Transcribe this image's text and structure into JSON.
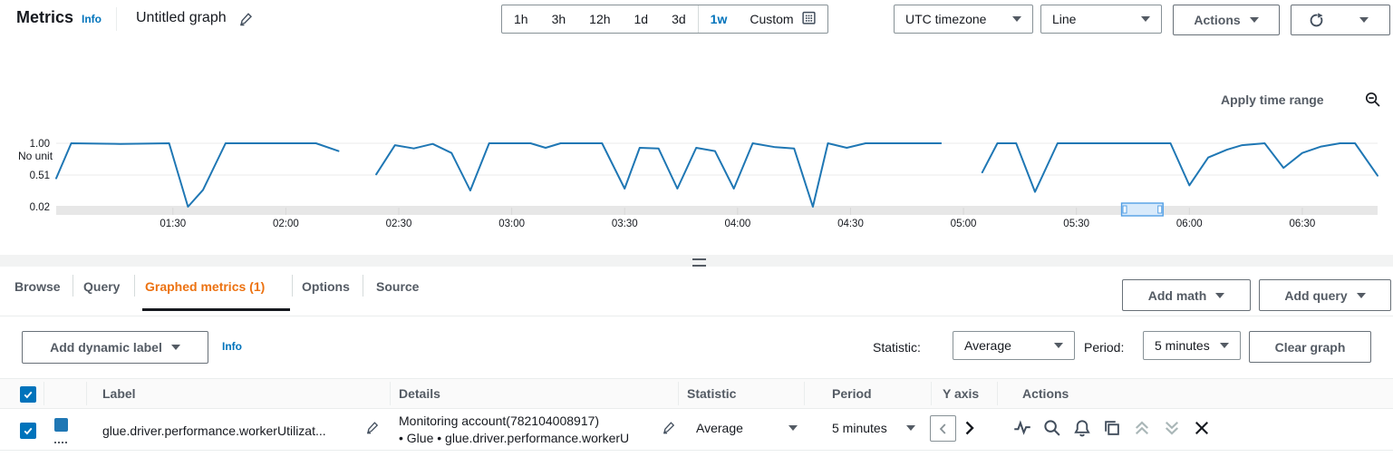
{
  "colors": {
    "accent_blue": "#0073bb",
    "active_tab_orange": "#ec7211",
    "line_blue": "#1f77b4",
    "text_dark": "#16191f",
    "text_secondary": "#545b64"
  },
  "header": {
    "app_title": "Metrics",
    "info_label": "Info",
    "graph_title": "Untitled graph",
    "time_ranges": [
      "1h",
      "3h",
      "12h",
      "1d",
      "3d",
      "1w"
    ],
    "selected_time_range": "1w",
    "custom_label": "Custom",
    "timezone_value": "UTC timezone",
    "chart_type_value": "Line",
    "actions_label": "Actions"
  },
  "chart": {
    "apply_time_range_label": "Apply time range",
    "unit_label": "No unit"
  },
  "chart_data": {
    "type": "line",
    "title": "",
    "ylabel": "No unit",
    "ylim": [
      0.02,
      1.0
    ],
    "yticks": [
      {
        "v": 1.0,
        "label": "1.00"
      },
      {
        "v": 0.51,
        "label": "0.51"
      },
      {
        "v": 0.02,
        "label": "0.02"
      }
    ],
    "x_domain_minutes": [
      59,
      410
    ],
    "xticks": [
      {
        "m": 90,
        "label": "01:30"
      },
      {
        "m": 120,
        "label": "02:00"
      },
      {
        "m": 150,
        "label": "02:30"
      },
      {
        "m": 180,
        "label": "03:00"
      },
      {
        "m": 210,
        "label": "03:30"
      },
      {
        "m": 240,
        "label": "04:00"
      },
      {
        "m": 270,
        "label": "04:30"
      },
      {
        "m": 300,
        "label": "05:00"
      },
      {
        "m": 330,
        "label": "05:30"
      },
      {
        "m": 360,
        "label": "06:00"
      },
      {
        "m": 390,
        "label": "06:30"
      }
    ],
    "zoom_selection_minutes": [
      342,
      353
    ],
    "legend": "none",
    "grid": "horizontal",
    "series": [
      {
        "name": "glue.driver.performance.workerUtilization",
        "color": "#1f77b4",
        "segments": [
          [
            [
              59,
              0.46
            ],
            [
              63,
              1.0
            ],
            [
              76,
              0.99
            ],
            [
              89,
              1.0
            ],
            [
              94,
              0.02
            ],
            [
              98,
              0.28
            ],
            [
              104,
              1.0
            ],
            [
              128,
              1.0
            ],
            [
              134,
              0.88
            ]
          ],
          [
            [
              144,
              0.52
            ],
            [
              149,
              0.97
            ],
            [
              154,
              0.92
            ],
            [
              159,
              0.99
            ],
            [
              164,
              0.85
            ],
            [
              169,
              0.27
            ],
            [
              174,
              1.0
            ],
            [
              185,
              1.0
            ],
            [
              189,
              0.93
            ],
            [
              193,
              1.0
            ],
            [
              204,
              1.0
            ],
            [
              210,
              0.3
            ],
            [
              214,
              0.93
            ],
            [
              219,
              0.92
            ],
            [
              224,
              0.3
            ],
            [
              229,
              0.93
            ],
            [
              234,
              0.88
            ],
            [
              239,
              0.3
            ],
            [
              244,
              1.0
            ],
            [
              250,
              0.94
            ],
            [
              255,
              0.92
            ],
            [
              260,
              0.02
            ],
            [
              264,
              1.0
            ],
            [
              269,
              0.93
            ],
            [
              274,
              1.0
            ],
            [
              294,
              1.0
            ]
          ],
          [
            [
              305,
              0.55
            ],
            [
              309,
              1.0
            ],
            [
              314,
              1.0
            ],
            [
              319,
              0.25
            ],
            [
              325,
              1.0
            ],
            [
              355,
              1.0
            ],
            [
              360,
              0.35
            ],
            [
              365,
              0.78
            ],
            [
              370,
              0.9
            ],
            [
              374,
              0.97
            ],
            [
              380,
              1.0
            ],
            [
              385,
              0.62
            ],
            [
              390,
              0.85
            ],
            [
              395,
              0.95
            ],
            [
              400,
              1.0
            ],
            [
              404,
              1.0
            ],
            [
              410,
              0.5
            ]
          ]
        ]
      }
    ]
  },
  "tabs": [
    {
      "label": "Browse",
      "active": false
    },
    {
      "label": "Query",
      "active": false
    },
    {
      "label": "Graphed metrics (1)",
      "active": true
    },
    {
      "label": "Options",
      "active": false
    },
    {
      "label": "Source",
      "active": false
    }
  ],
  "toolbar": {
    "add_math_label": "Add math",
    "add_query_label": "Add query",
    "add_dynamic_label": "Add dynamic label",
    "info_label": "Info",
    "statistic_label": "Statistic:",
    "statistic_value": "Average",
    "period_label": "Period:",
    "period_value": "5 minutes",
    "clear_graph_label": "Clear graph"
  },
  "table": {
    "columns": [
      "Label",
      "Details",
      "Statistic",
      "Period",
      "Y axis",
      "Actions"
    ],
    "rows": [
      {
        "selected": true,
        "swatch_color": "#1f77b4",
        "label": "glue.driver.performance.workerUtilizat...",
        "details_line1": "Monitoring account(782104008917)",
        "details_line2": "• Glue • glue.driver.performance.workerU",
        "statistic": "Average",
        "period": "5 minutes"
      }
    ]
  }
}
